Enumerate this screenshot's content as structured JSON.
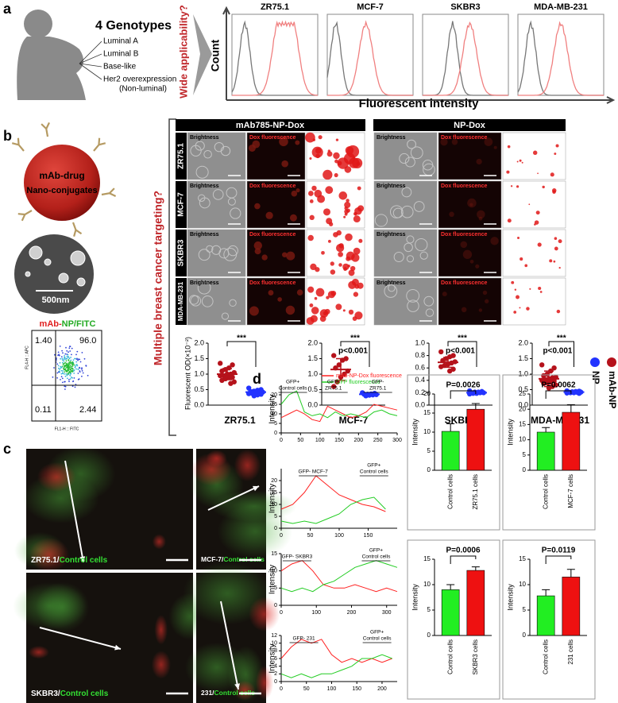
{
  "panel_labels": {
    "a": "a",
    "b": "b",
    "c": "c",
    "d": "d"
  },
  "cell_lines": [
    "ZR75.1",
    "MCF-7",
    "SKBR3",
    "MDA-MB-231"
  ],
  "panel_a": {
    "title": "4 Genotypes",
    "genotypes": [
      "Luminal A",
      "Luminal B",
      "Base-like",
      "Her2 overexpression",
      "(Non-luminal)"
    ],
    "question": "Wide applicability?",
    "y_label": "Count",
    "x_label": "Fluorescent intensity"
  },
  "panel_b": {
    "conjugate": [
      "mAb-drug",
      "Nano-conjugates"
    ],
    "scale_bar": "500nm",
    "flow": {
      "title": [
        "mAb-",
        "NP/FITC"
      ],
      "quadrants": [
        "1.40",
        "96.0",
        "0.11",
        "2.44"
      ],
      "x_label": "FL1-H :: FITC",
      "y_label": "FL4-H :: APC"
    },
    "question": "Multiple breast cancer targeting?",
    "groups": [
      "mAb785-NP-Dox",
      "NP-Dox"
    ],
    "image_labels": [
      "Brightness",
      "Dox fluorescence"
    ]
  },
  "panel_c": {
    "labels": [
      [
        "ZR75.1/",
        "Control cells"
      ],
      [
        "MCF-7/",
        "Control cells"
      ],
      [
        "SKBR3/",
        "Control cells"
      ],
      [
        "231/",
        "Control cells"
      ]
    ]
  },
  "chart_data": [
    {
      "type": "dot",
      "ylabel": "Fluorescent OD(×10⁻²)",
      "legend": "right",
      "significance": "***",
      "ylim": [
        0,
        2
      ],
      "yticks": [
        {
          "value": 0,
          "label": "0.0"
        },
        0.5,
        {
          "value": 1,
          "label": "1.0"
        },
        1.5,
        {
          "value": 2,
          "label": "2.0"
        }
      ],
      "series": [
        {
          "name": "mAb-NP",
          "color": "#b5121b",
          "values": [
            1.35,
            1.3,
            1.2,
            1.15,
            1.1,
            1.05,
            1.0,
            1.0,
            0.95,
            0.95,
            0.9,
            0.9,
            0.85,
            0.8,
            0.75,
            0.7
          ],
          "mean": 1.0,
          "error": 0.18
        },
        {
          "name": "NP",
          "color": "#2233ff",
          "values": [
            0.55,
            0.5,
            0.48,
            0.45,
            0.43,
            0.42,
            0.4,
            0.4,
            0.38,
            0.37,
            0.35,
            0.33,
            0.3
          ],
          "mean": 0.42,
          "error": 0.07
        }
      ]
    },
    {
      "type": "dot",
      "significance": "***",
      "p_label": "p<0.001",
      "ylim": [
        0,
        2
      ],
      "yticks": [
        {
          "value": 0,
          "label": "0.0"
        },
        0.5,
        {
          "value": 1,
          "label": "1.0"
        },
        1.5,
        {
          "value": 2,
          "label": "2.0"
        }
      ],
      "series": [
        {
          "color": "#b5121b",
          "values": [
            1.6,
            1.5,
            1.45,
            1.3,
            1.2,
            1.1,
            1.0,
            0.9,
            0.75,
            0.6
          ],
          "mean": 1.15,
          "error": 0.35
        },
        {
          "color": "#2233ff",
          "values": [
            0.4,
            0.38,
            0.36,
            0.35,
            0.35,
            0.34,
            0.33,
            0.32,
            0.3
          ],
          "mean": 0.35,
          "error": 0.03
        }
      ]
    },
    {
      "type": "dot",
      "significance": "***",
      "p_label": "p<0.001",
      "ylim": [
        0,
        1
      ],
      "yticks": [
        {
          "value": 0,
          "label": "0.0"
        },
        0.2,
        0.4,
        0.6,
        0.8,
        {
          "value": 1,
          "label": "1.0"
        }
      ],
      "series": [
        {
          "color": "#b5121b",
          "values": [
            0.86,
            0.8,
            0.78,
            0.75,
            0.72,
            0.7,
            0.68,
            0.66,
            0.64,
            0.62,
            0.58,
            0.55
          ],
          "mean": 0.69,
          "error": 0.08
        },
        {
          "color": "#2233ff",
          "values": [
            0.23,
            0.22,
            0.21,
            0.21,
            0.2,
            0.2,
            0.2,
            0.19,
            0.19,
            0.18
          ],
          "mean": 0.2,
          "error": 0.02
        }
      ]
    },
    {
      "type": "dot",
      "significance": "***",
      "p_label": "p<0.001",
      "ylim": [
        0,
        2
      ],
      "yticks": [
        {
          "value": 0,
          "label": "0.0"
        },
        0.5,
        {
          "value": 1,
          "label": "1.0"
        },
        1.5,
        {
          "value": 2,
          "label": "2.0"
        }
      ],
      "series": [
        {
          "color": "#b5121b",
          "values": [
            1.3,
            1.2,
            1.1,
            1.0,
            0.95,
            0.9,
            0.88,
            0.85,
            0.82,
            0.8,
            0.78,
            0.75,
            0.72,
            0.7,
            0.65,
            0.6,
            0.55
          ],
          "mean": 0.85,
          "error": 0.25
        },
        {
          "color": "#2233ff",
          "values": [
            0.46,
            0.45,
            0.44,
            0.43,
            0.42,
            0.42,
            0.41,
            0.4,
            0.4,
            0.39,
            0.38
          ],
          "mean": 0.42,
          "error": 0.03
        }
      ]
    },
    {
      "type": "line",
      "ylabel": "Intensity",
      "xlim": [
        0,
        300
      ],
      "xticks": [
        0,
        50,
        100,
        150,
        200,
        250,
        300
      ],
      "ylim": [
        0,
        25
      ],
      "yticks": [
        0,
        5,
        10,
        15,
        20
      ],
      "x": [
        0,
        20,
        40,
        60,
        80,
        100,
        120,
        140,
        160,
        180,
        200,
        220,
        240,
        260,
        280,
        300
      ],
      "series": [
        {
          "name": "mAb-NP-Dox fluorescence",
          "color": "#ff2020",
          "values": [
            8,
            10,
            12,
            10,
            7,
            6,
            14,
            12,
            10,
            8,
            9,
            11,
            15,
            14,
            13,
            12
          ]
        },
        {
          "name": "GFP fluorescence",
          "color": "#22cc22",
          "values": [
            15,
            20,
            22,
            11,
            9,
            10,
            8,
            11,
            9,
            10,
            9,
            8,
            11,
            12,
            10,
            9
          ]
        }
      ],
      "annotations": [
        [
          "GFP+",
          "Control cells"
        ],
        [
          "GFP-",
          "ZR75.1"
        ],
        [
          "GFP-",
          "ZR75.1"
        ]
      ]
    },
    {
      "type": "line",
      "ylabel": "Intensity",
      "xlim": [
        0,
        200
      ],
      "xticks": [
        0,
        50,
        100,
        150
      ],
      "ylim": [
        0,
        25
      ],
      "yticks": [
        0,
        5,
        10,
        15,
        20
      ],
      "x": [
        0,
        20,
        40,
        60,
        80,
        100,
        120,
        140,
        160,
        180
      ],
      "series": [
        {
          "color": "#ff2020",
          "values": [
            8,
            10,
            15,
            22,
            18,
            14,
            12,
            10,
            9,
            7
          ]
        },
        {
          "color": "#22cc22",
          "values": [
            3,
            2,
            3,
            2,
            4,
            6,
            10,
            12,
            13,
            8
          ]
        }
      ],
      "annotations": [
        [
          "GFP- MCF-7"
        ],
        [
          "GFP+",
          "Control cells"
        ]
      ]
    },
    {
      "type": "line",
      "ylabel": "Intensity",
      "xlim": [
        0,
        330
      ],
      "xticks": [
        0,
        100,
        200,
        300
      ],
      "ylim": [
        0,
        15
      ],
      "yticks": [
        0,
        5,
        10,
        15
      ],
      "x": [
        0,
        30,
        60,
        90,
        120,
        150,
        180,
        210,
        240,
        270,
        300,
        330
      ],
      "series": [
        {
          "color": "#ff2020",
          "values": [
            10,
            12,
            13,
            10,
            6,
            5,
            5,
            6,
            5,
            4,
            5,
            4
          ]
        },
        {
          "color": "#22cc22",
          "values": [
            5,
            4,
            5,
            4,
            6,
            7,
            9,
            11,
            12,
            13,
            12,
            11
          ]
        }
      ],
      "annotations": [
        [
          "GFP- SKBR3"
        ],
        [
          "GFP+",
          "Control cells"
        ]
      ]
    },
    {
      "type": "line",
      "ylabel": "Intensity",
      "xlim": [
        0,
        230
      ],
      "xticks": [
        0,
        50,
        100,
        150,
        200
      ],
      "ylim": [
        0,
        12
      ],
      "yticks": [
        0,
        2,
        4,
        6,
        8,
        10,
        12
      ],
      "x": [
        0,
        20,
        40,
        60,
        80,
        100,
        120,
        140,
        160,
        180,
        200,
        220
      ],
      "series": [
        {
          "color": "#ff2020",
          "values": [
            6,
            9,
            11,
            10,
            11,
            7,
            5,
            6,
            5,
            6,
            5,
            6
          ]
        },
        {
          "color": "#22cc22",
          "values": [
            2,
            1,
            2,
            1,
            2,
            2,
            3,
            4,
            6,
            6,
            7,
            6
          ]
        }
      ],
      "annotations": [
        [
          "GFP- 231"
        ],
        [
          "GFP+",
          "Control cells"
        ]
      ]
    },
    {
      "type": "bar",
      "ylabel": "Intensity",
      "p_label": "P=0.0026",
      "ylim": [
        0,
        20
      ],
      "yticks": [
        0,
        5,
        10,
        15,
        20
      ],
      "categories": [
        "Control cells",
        "ZR75.1 cells"
      ],
      "values": [
        10.2,
        16
      ],
      "errors": [
        2,
        1.5
      ],
      "colors": [
        "#22ee22",
        "#ee1111"
      ]
    },
    {
      "type": "bar",
      "ylabel": "Intensity",
      "p_label": "P=0.0062",
      "ylim": [
        0,
        25
      ],
      "yticks": [
        0,
        5,
        10,
        15,
        20,
        25
      ],
      "categories": [
        "Control cells",
        "MCF-7 cells"
      ],
      "values": [
        12.5,
        19
      ],
      "errors": [
        1.5,
        2.5
      ],
      "colors": [
        "#22ee22",
        "#ee1111"
      ]
    },
    {
      "type": "bar",
      "ylabel": "Intensity",
      "p_label": "P=0.0006",
      "ylim": [
        0,
        15
      ],
      "yticks": [
        0,
        5,
        10,
        15
      ],
      "categories": [
        "Control cells",
        "SKBR3 cells"
      ],
      "values": [
        9,
        12.8
      ],
      "errors": [
        1,
        0.7
      ],
      "colors": [
        "#22ee22",
        "#ee1111"
      ]
    },
    {
      "type": "bar",
      "ylabel": "Intensity",
      "p_label": "P=0.0119",
      "ylim": [
        0,
        15
      ],
      "yticks": [
        0,
        5,
        10,
        15
      ],
      "categories": [
        "Control cells",
        "231 cells"
      ],
      "values": [
        7.8,
        11.5
      ],
      "errors": [
        1.2,
        1.5
      ],
      "colors": [
        "#22ee22",
        "#ee1111"
      ]
    }
  ]
}
